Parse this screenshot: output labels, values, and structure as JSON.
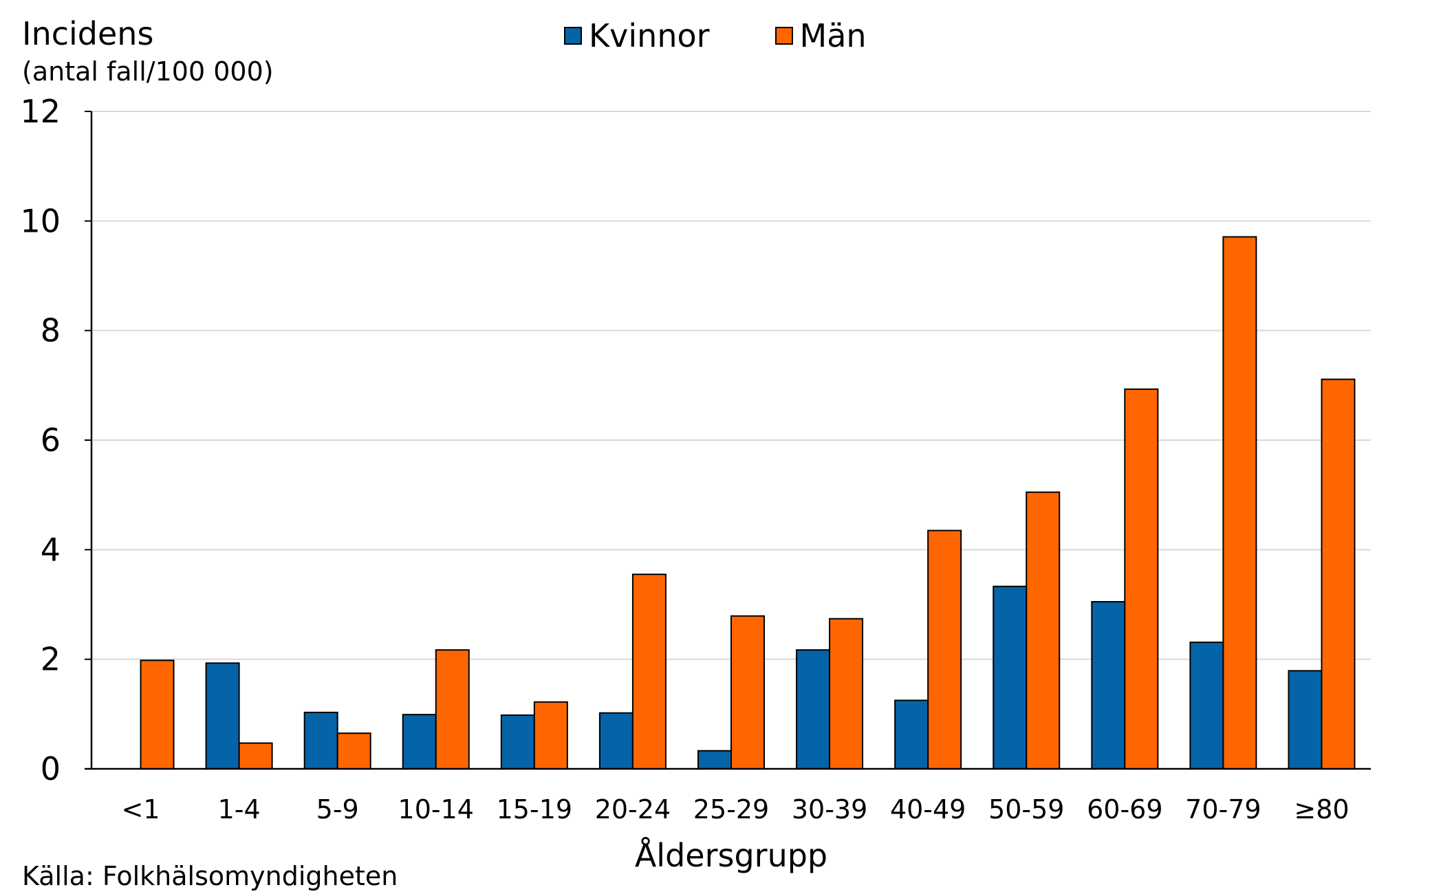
{
  "chart_data": {
    "type": "bar",
    "ylabel": "Incidens",
    "ylabel_unit": "(antal fall/100 000)",
    "xlabel": "Åldersgrupp",
    "source": "Källa: Folkhälsomyndigheten",
    "ylim": [
      0,
      12
    ],
    "yticks": [
      0,
      2,
      4,
      6,
      8,
      10,
      12
    ],
    "grid": true,
    "legend_position": "top-center",
    "categories": [
      "<1",
      "1-4",
      "5-9",
      "10-14",
      "15-19",
      "20-24",
      "25-29",
      "30-39",
      "40-49",
      "50-59",
      "60-69",
      "70-79",
      "≥80"
    ],
    "series": [
      {
        "name": "Kvinnor",
        "color": "#0563A8",
        "values": [
          0,
          1.93,
          1.03,
          0.99,
          0.98,
          1.02,
          0.33,
          2.17,
          1.25,
          3.33,
          3.05,
          2.31,
          1.79
        ]
      },
      {
        "name": "Män",
        "color": "#FF6600",
        "values": [
          1.98,
          0.47,
          0.65,
          2.17,
          1.22,
          3.55,
          2.79,
          2.74,
          4.35,
          5.05,
          6.93,
          9.71,
          7.11
        ]
      }
    ]
  }
}
